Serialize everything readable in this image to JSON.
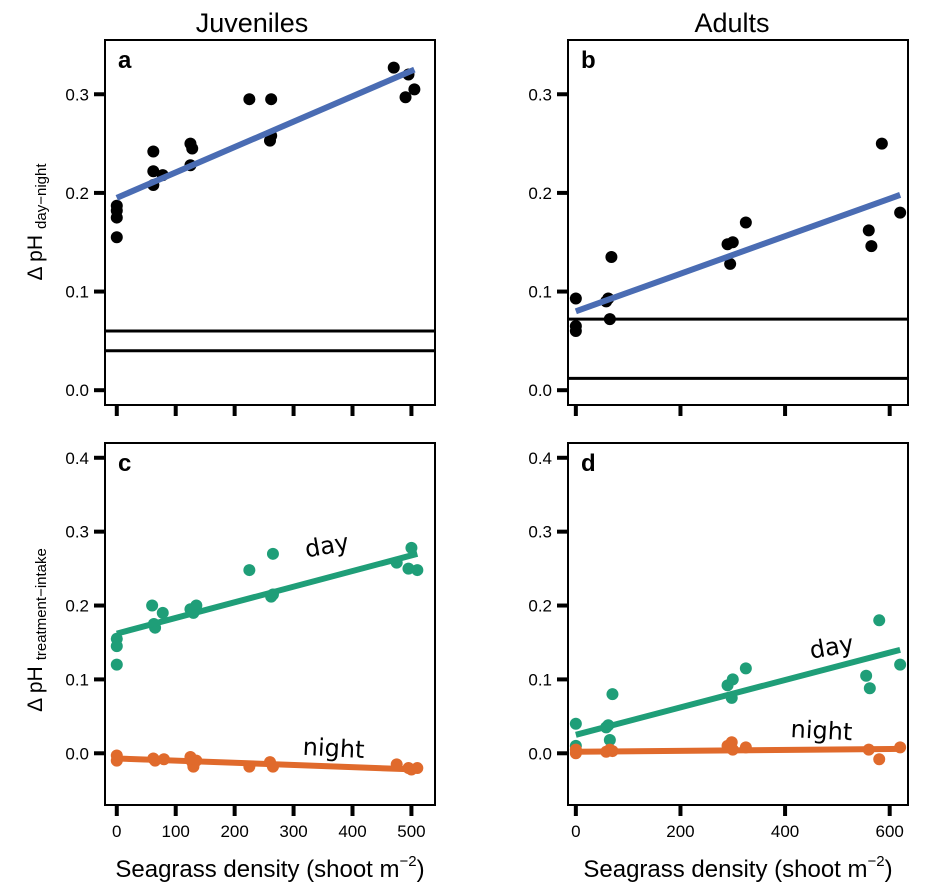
{
  "figure": {
    "col_titles": [
      "Juveniles",
      "Adults"
    ],
    "xlabel": {
      "main": "Seagrass density (shoot m",
      "sup": "−2",
      "close": ")"
    },
    "ylabel_top": {
      "main": "Δ pH",
      "sub": "day−night"
    },
    "ylabel_bottom": {
      "main": "Δ pH",
      "sub": "treatment−intake"
    }
  },
  "colors": {
    "fit_blue": "#4a6cb3",
    "day_green": "#1f9e78",
    "night_orange": "#e06a2c",
    "point_black": "#000000"
  },
  "chart_data": [
    {
      "type": "scatter",
      "panel": "a",
      "column": "Juveniles",
      "xlim": [
        -20,
        540
      ],
      "ylim": [
        -0.015,
        0.355
      ],
      "xticks": [
        0,
        100,
        200,
        300,
        400,
        500
      ],
      "yticks": [
        0.0,
        0.1,
        0.2,
        0.3
      ],
      "ytick_labels": [
        "0.0",
        "0.1",
        "0.2",
        "0.3"
      ],
      "show_x_tick_labels": false,
      "series": [
        {
          "points": [
            [
              0,
              0.155
            ],
            [
              0,
              0.175
            ],
            [
              0,
              0.182
            ],
            [
              0,
              0.187
            ],
            [
              62,
              0.208
            ],
            [
              62,
              0.222
            ],
            [
              62,
              0.242
            ],
            [
              78,
              0.218
            ],
            [
              125,
              0.228
            ],
            [
              125,
              0.25
            ],
            [
              128,
              0.245
            ],
            [
              225,
              0.295
            ],
            [
              260,
              0.253
            ],
            [
              262,
              0.258
            ],
            [
              262,
              0.295
            ],
            [
              470,
              0.327
            ],
            [
              490,
              0.297
            ],
            [
              495,
              0.32
            ],
            [
              505,
              0.305
            ]
          ],
          "point_color": "#000000",
          "fit": [
            [
              0,
              0.195
            ],
            [
              505,
              0.325
            ]
          ],
          "fit_color": "#4a6cb3"
        }
      ],
      "hlines": [
        0.04,
        0.06
      ]
    },
    {
      "type": "scatter",
      "panel": "b",
      "column": "Adults",
      "xlim": [
        -15,
        635
      ],
      "ylim": [
        -0.015,
        0.355
      ],
      "xticks": [
        0,
        200,
        400,
        600
      ],
      "yticks": [
        0.0,
        0.1,
        0.2,
        0.3
      ],
      "ytick_labels": [
        "0.0",
        "0.1",
        "0.2",
        "0.3"
      ],
      "show_x_tick_labels": false,
      "series": [
        {
          "points": [
            [
              0,
              0.06
            ],
            [
              0,
              0.065
            ],
            [
              0,
              0.093
            ],
            [
              58,
              0.09
            ],
            [
              62,
              0.093
            ],
            [
              65,
              0.072
            ],
            [
              68,
              0.135
            ],
            [
              290,
              0.148
            ],
            [
              295,
              0.128
            ],
            [
              300,
              0.15
            ],
            [
              325,
              0.17
            ],
            [
              560,
              0.162
            ],
            [
              565,
              0.146
            ],
            [
              585,
              0.25
            ],
            [
              620,
              0.18
            ]
          ],
          "point_color": "#000000",
          "fit": [
            [
              0,
              0.08
            ],
            [
              620,
              0.198
            ]
          ],
          "fit_color": "#4a6cb3"
        }
      ],
      "hlines": [
        0.012,
        0.072
      ]
    },
    {
      "type": "scatter",
      "panel": "c",
      "column": "Juveniles",
      "xlim": [
        -20,
        540
      ],
      "ylim": [
        -0.07,
        0.42
      ],
      "xticks": [
        0,
        100,
        200,
        300,
        400,
        500
      ],
      "xtick_labels": [
        "0",
        "100",
        "200",
        "300",
        "400",
        "500"
      ],
      "yticks": [
        0.0,
        0.1,
        0.2,
        0.3,
        0.4
      ],
      "ytick_labels": [
        "0.0",
        "0.1",
        "0.2",
        "0.3",
        "0.4"
      ],
      "show_x_tick_labels": true,
      "series": [
        {
          "name": "day",
          "color": "#1f9e78",
          "points": [
            [
              0,
              0.12
            ],
            [
              0,
              0.145
            ],
            [
              0,
              0.155
            ],
            [
              60,
              0.2
            ],
            [
              63,
              0.175
            ],
            [
              65,
              0.17
            ],
            [
              78,
              0.19
            ],
            [
              125,
              0.195
            ],
            [
              130,
              0.19
            ],
            [
              135,
              0.2
            ],
            [
              225,
              0.248
            ],
            [
              262,
              0.212
            ],
            [
              265,
              0.215
            ],
            [
              265,
              0.27
            ],
            [
              475,
              0.258
            ],
            [
              495,
              0.25
            ],
            [
              500,
              0.278
            ],
            [
              510,
              0.248
            ]
          ],
          "fit": [
            [
              0,
              0.162
            ],
            [
              510,
              0.27
            ]
          ],
          "label_at": [
            322,
            0.265
          ]
        },
        {
          "name": "night",
          "color": "#e06a2c",
          "points": [
            [
              0,
              -0.003
            ],
            [
              0,
              -0.01
            ],
            [
              62,
              -0.007
            ],
            [
              65,
              -0.01
            ],
            [
              80,
              -0.008
            ],
            [
              125,
              -0.005
            ],
            [
              128,
              -0.012
            ],
            [
              130,
              -0.018
            ],
            [
              135,
              -0.01
            ],
            [
              225,
              -0.018
            ],
            [
              260,
              -0.012
            ],
            [
              265,
              -0.018
            ],
            [
              475,
              -0.015
            ],
            [
              495,
              -0.02
            ],
            [
              500,
              -0.022
            ],
            [
              510,
              -0.02
            ]
          ],
          "fit": [
            [
              0,
              -0.007
            ],
            [
              510,
              -0.022
            ]
          ],
          "label_at": [
            315,
            -0.002
          ]
        }
      ],
      "hlines": []
    },
    {
      "type": "scatter",
      "panel": "d",
      "column": "Adults",
      "xlim": [
        -15,
        635
      ],
      "ylim": [
        -0.07,
        0.42
      ],
      "xticks": [
        0,
        200,
        400,
        600
      ],
      "xtick_labels": [
        "0",
        "200",
        "400",
        "600"
      ],
      "yticks": [
        0.0,
        0.1,
        0.2,
        0.3,
        0.4
      ],
      "ytick_labels": [
        "0.0",
        "0.1",
        "0.2",
        "0.3",
        "0.4"
      ],
      "show_x_tick_labels": true,
      "series": [
        {
          "name": "day",
          "color": "#1f9e78",
          "points": [
            [
              0,
              0.01
            ],
            [
              0,
              0.04
            ],
            [
              58,
              0.035
            ],
            [
              62,
              0.038
            ],
            [
              65,
              0.018
            ],
            [
              70,
              0.08
            ],
            [
              290,
              0.092
            ],
            [
              298,
              0.075
            ],
            [
              300,
              0.1
            ],
            [
              325,
              0.115
            ],
            [
              555,
              0.105
            ],
            [
              562,
              0.088
            ],
            [
              580,
              0.18
            ],
            [
              620,
              0.12
            ]
          ],
          "fit": [
            [
              0,
              0.025
            ],
            [
              620,
              0.14
            ]
          ],
          "label_at": [
            450,
            0.128
          ]
        },
        {
          "name": "night",
          "color": "#e06a2c",
          "points": [
            [
              0,
              0.0
            ],
            [
              0,
              0.005
            ],
            [
              58,
              0.002
            ],
            [
              65,
              0.005
            ],
            [
              70,
              0.003
            ],
            [
              290,
              0.01
            ],
            [
              298,
              0.015
            ],
            [
              300,
              0.005
            ],
            [
              325,
              0.008
            ],
            [
              560,
              0.005
            ],
            [
              580,
              -0.008
            ],
            [
              620,
              0.008
            ]
          ],
          "fit": [
            [
              0,
              0.002
            ],
            [
              620,
              0.006
            ]
          ],
          "label_at": [
            410,
            0.022
          ]
        }
      ],
      "hlines": []
    }
  ]
}
